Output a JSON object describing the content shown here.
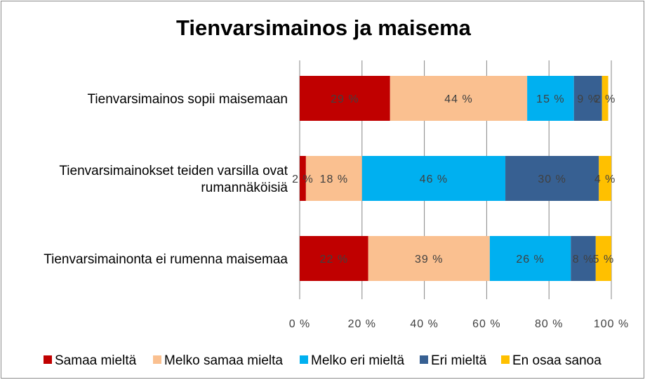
{
  "chart_data": {
    "type": "bar",
    "orientation": "horizontal",
    "stacked": true,
    "title": "Tienvarsimainos ja maisema",
    "categories": [
      [
        "Tienvarsimainos sopii maisemaan"
      ],
      [
        "Tienvarsimainokset teiden varsilla ovat",
        "rumannäköisiä"
      ],
      [
        "Tienvarsimainonta ei rumenna maisemaa"
      ]
    ],
    "series": [
      {
        "name": "Samaa mieltä",
        "color": "#C00000",
        "values": [
          29,
          2,
          22
        ],
        "labels": [
          "29 %",
          "2 %",
          "22 %"
        ]
      },
      {
        "name": "Melko samaa mielta",
        "color": "#FAC090",
        "values": [
          44,
          18,
          39
        ],
        "labels": [
          "44 %",
          "18 %",
          "39 %"
        ]
      },
      {
        "name": "Melko eri mieltä",
        "color": "#00B0F0",
        "values": [
          15,
          46,
          26
        ],
        "labels": [
          "15 %",
          "46 %",
          "26 %"
        ]
      },
      {
        "name": "Eri mieltä",
        "color": "#376092",
        "values": [
          9,
          30,
          8
        ],
        "labels": [
          "9 %",
          "30 %",
          "8 %"
        ]
      },
      {
        "name": "En osaa sanoa",
        "color": "#FFC000",
        "values": [
          2,
          4,
          5
        ],
        "labels": [
          "2 %",
          "4 %",
          "5 %"
        ]
      }
    ],
    "xticks": [
      "0 %",
      "20 %",
      "40 %",
      "60 %",
      "80 %",
      "100 %"
    ],
    "xlim": [
      0,
      100
    ],
    "grid": true,
    "legend_position": "bottom"
  }
}
